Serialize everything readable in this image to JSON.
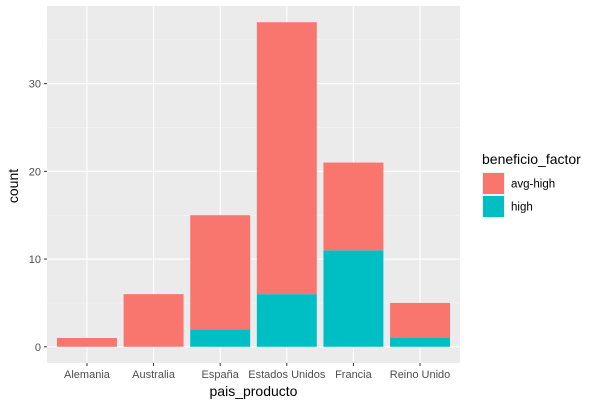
{
  "chart_data": {
    "type": "bar",
    "stacked": true,
    "categories": [
      "Alemania",
      "Australia",
      "España",
      "Estados Unidos",
      "Francia",
      "Reino Unido"
    ],
    "series": [
      {
        "name": "avg-high",
        "values": [
          1,
          6,
          13,
          31,
          10,
          4
        ],
        "color": "#F8766D"
      },
      {
        "name": "high",
        "values": [
          0,
          0,
          2,
          6,
          11,
          1
        ],
        "color": "#00BFC4"
      }
    ],
    "xlabel": "pais_producto",
    "ylabel": "count",
    "ylim": [
      0,
      38.85
    ],
    "yticks": [
      0,
      10,
      20,
      30
    ],
    "grid": true,
    "panel_background": "#EBEBEB",
    "legend": {
      "title": "beneficio_factor",
      "position": "right"
    }
  }
}
